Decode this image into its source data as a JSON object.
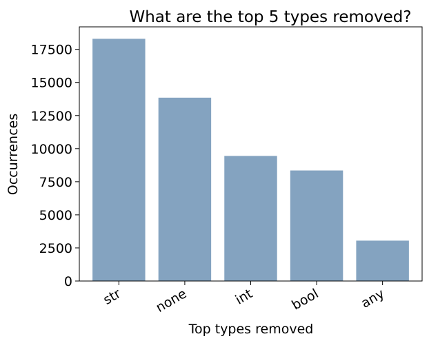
{
  "chart_data": {
    "type": "bar",
    "title": "What are the top 5 types removed?",
    "xlabel": "Top types removed",
    "ylabel": "Occurrences",
    "categories": [
      "str",
      "none",
      "int",
      "bool",
      "any"
    ],
    "values": [
      18300,
      13850,
      9450,
      8350,
      3050
    ],
    "ylim": [
      0,
      19200
    ],
    "yticks": [
      0,
      2500,
      5000,
      7500,
      10000,
      12500,
      15000,
      17500
    ],
    "bar_color": "#84a3c0",
    "grid": false,
    "legend": false
  }
}
